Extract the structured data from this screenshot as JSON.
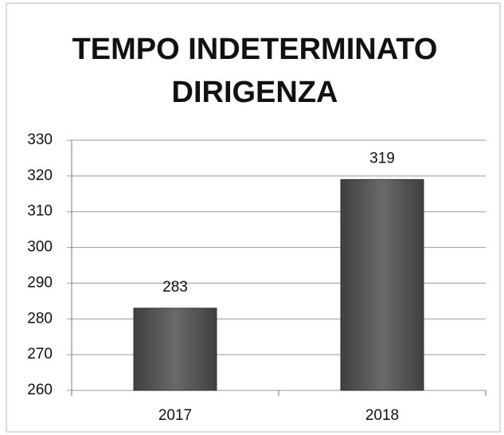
{
  "chart_data": {
    "type": "bar",
    "title": [
      "TEMPO INDETERMINATO",
      "DIRIGENZA"
    ],
    "categories": [
      "2017",
      "2018"
    ],
    "values": [
      283,
      319
    ],
    "color": "#555555",
    "ylim": [
      260,
      330
    ],
    "yticks": [
      260,
      270,
      280,
      290,
      300,
      310,
      320,
      330
    ],
    "grid": true
  }
}
